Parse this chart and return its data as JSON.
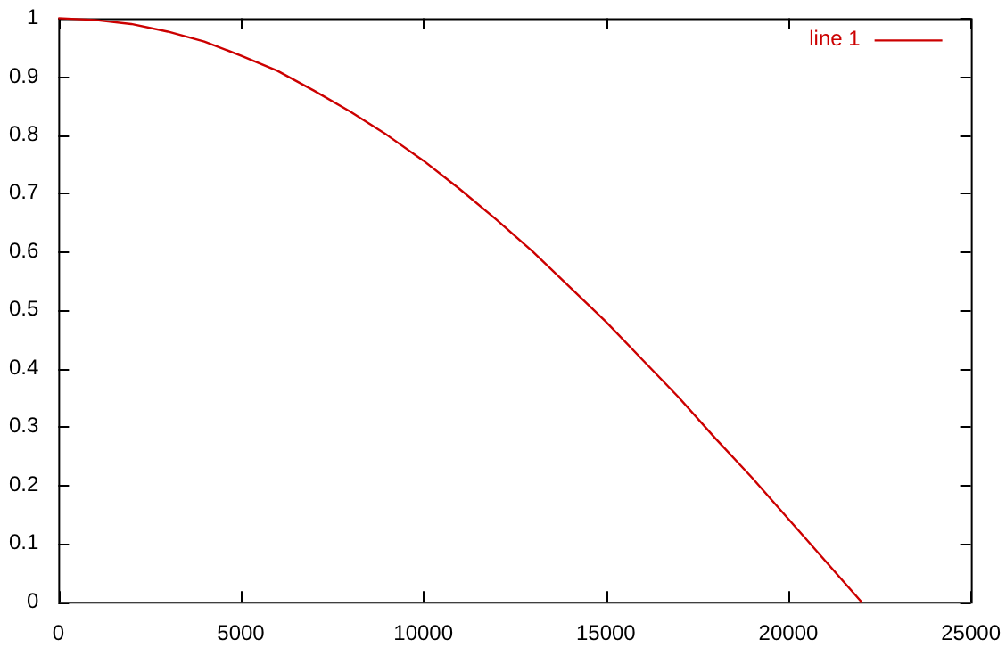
{
  "chart_data": {
    "type": "line",
    "x": [
      0,
      1000,
      2000,
      3000,
      4000,
      5000,
      6000,
      7000,
      8000,
      9000,
      10000,
      11000,
      12000,
      13000,
      14000,
      15000,
      16000,
      17000,
      18000,
      19000,
      20000,
      21000,
      22000
    ],
    "series": [
      {
        "name": "line 1",
        "color": "#cc0000",
        "values": [
          1,
          0.997,
          0.99,
          0.977,
          0.96,
          0.936,
          0.91,
          0.876,
          0.84,
          0.8,
          0.756,
          0.707,
          0.655,
          0.6,
          0.54,
          0.48,
          0.415,
          0.35,
          0.28,
          0.213,
          0.142,
          0.071,
          0
        ]
      }
    ],
    "xlim": [
      0,
      25000
    ],
    "xticks": [
      0,
      5000,
      10000,
      15000,
      20000,
      25000
    ],
    "ylim": [
      0,
      1
    ],
    "yticks": [
      0,
      0.1,
      0.2,
      0.3,
      0.4,
      0.5,
      0.6,
      0.7,
      0.8,
      0.9,
      1
    ],
    "grid": false,
    "legend": "top right",
    "marker": "none",
    "line_style": "solid"
  }
}
